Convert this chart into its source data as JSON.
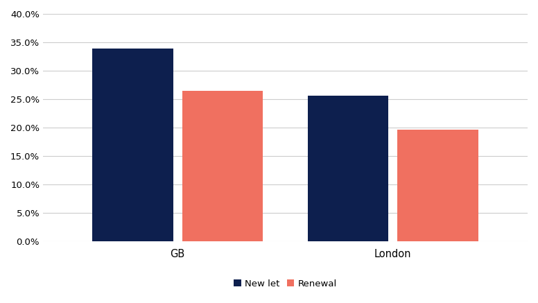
{
  "categories": [
    "GB",
    "London"
  ],
  "new_let_values": [
    0.339,
    0.256
  ],
  "renewal_values": [
    0.265,
    0.196
  ],
  "new_let_color": "#0d1f4e",
  "renewal_color": "#f07060",
  "bar_width": 0.18,
  "bar_gap": 0.02,
  "group_positions": [
    0.3,
    0.78
  ],
  "ylim": [
    0,
    0.4
  ],
  "yticks": [
    0.0,
    0.05,
    0.1,
    0.15,
    0.2,
    0.25,
    0.3,
    0.35,
    0.4
  ],
  "legend_labels": [
    "New let",
    "Renewal"
  ],
  "background_color": "#ffffff",
  "grid_color": "#cccccc",
  "tick_fontsize": 9.5,
  "legend_fontsize": 9.5,
  "xlabel_fontsize": 10.5
}
